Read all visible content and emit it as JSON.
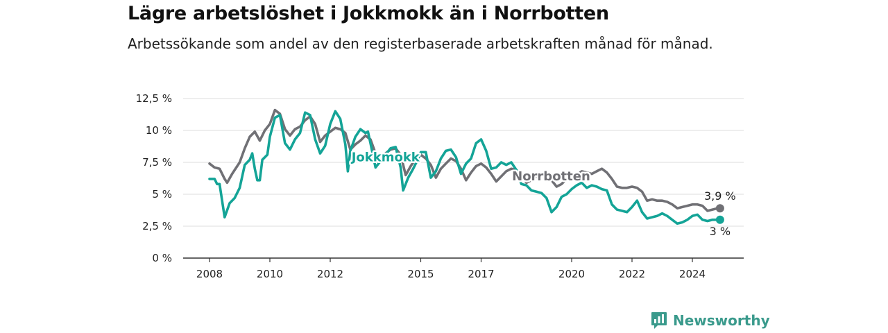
{
  "title": "Lägre arbetslöshet i Jokkmokk än i Norrbotten",
  "subtitle": "Arbetssökande som andel av den registerbaserade arbetskraften månad för månad.",
  "brand": {
    "name": "Newsworthy",
    "icon": "newsworthy-logo-icon",
    "color": "#3a9a8c"
  },
  "chart_data": {
    "type": "line",
    "x_range": [
      "2008-01",
      "2024-12"
    ],
    "ylim": [
      0,
      12.5
    ],
    "y_ticks": [
      {
        "value": 0,
        "label": "0 %"
      },
      {
        "value": 2.5,
        "label": "2,5 %"
      },
      {
        "value": 5,
        "label": "5 %"
      },
      {
        "value": 7.5,
        "label": "7,5 %"
      },
      {
        "value": 10,
        "label": "10 %"
      },
      {
        "value": 12.5,
        "label": "12,5 %"
      }
    ],
    "x_ticks": [
      "2008",
      "2010",
      "2012",
      "2015",
      "2017",
      "2020",
      "2022",
      "2024"
    ],
    "grid": "horizontal",
    "series": [
      {
        "name": "Norrbotten",
        "color": "#707075",
        "end_label": "3,9 %",
        "points": [
          [
            "2008-01",
            7.4
          ],
          [
            "2008-03",
            7.1
          ],
          [
            "2008-05",
            7.0
          ],
          [
            "2008-07",
            6.2
          ],
          [
            "2008-08",
            5.9
          ],
          [
            "2008-10",
            6.6
          ],
          [
            "2009-01",
            7.5
          ],
          [
            "2009-03",
            8.6
          ],
          [
            "2009-05",
            9.5
          ],
          [
            "2009-07",
            9.9
          ],
          [
            "2009-09",
            9.2
          ],
          [
            "2009-11",
            10.0
          ],
          [
            "2010-01",
            10.5
          ],
          [
            "2010-03",
            11.6
          ],
          [
            "2010-05",
            11.3
          ],
          [
            "2010-07",
            10.1
          ],
          [
            "2010-09",
            9.6
          ],
          [
            "2010-11",
            10.1
          ],
          [
            "2011-01",
            10.3
          ],
          [
            "2011-03",
            10.8
          ],
          [
            "2011-05",
            11.1
          ],
          [
            "2011-07",
            10.5
          ],
          [
            "2011-09",
            9.1
          ],
          [
            "2011-11",
            9.6
          ],
          [
            "2012-01",
            9.9
          ],
          [
            "2012-03",
            10.2
          ],
          [
            "2012-05",
            10.1
          ],
          [
            "2012-07",
            9.8
          ],
          [
            "2012-09",
            8.5
          ],
          [
            "2012-11",
            8.9
          ],
          [
            "2013-01",
            9.2
          ],
          [
            "2013-03",
            9.6
          ],
          [
            "2013-05",
            9.3
          ],
          [
            "2013-07",
            8.2
          ],
          [
            "2013-09",
            7.6
          ],
          [
            "2013-11",
            8.2
          ],
          [
            "2014-01",
            8.5
          ],
          [
            "2014-03",
            8.6
          ],
          [
            "2014-05",
            8.1
          ],
          [
            "2014-07",
            6.5
          ],
          [
            "2014-09",
            7.2
          ],
          [
            "2014-11",
            7.8
          ],
          [
            "2015-01",
            8.1
          ],
          [
            "2015-03",
            7.8
          ],
          [
            "2015-05",
            7.3
          ],
          [
            "2015-07",
            6.3
          ],
          [
            "2015-09",
            7.0
          ],
          [
            "2015-11",
            7.4
          ],
          [
            "2016-01",
            7.8
          ],
          [
            "2016-03",
            7.6
          ],
          [
            "2016-05",
            7.0
          ],
          [
            "2016-07",
            6.1
          ],
          [
            "2016-09",
            6.7
          ],
          [
            "2016-11",
            7.2
          ],
          [
            "2017-01",
            7.4
          ],
          [
            "2017-03",
            7.1
          ],
          [
            "2017-05",
            6.6
          ],
          [
            "2017-07",
            6.0
          ],
          [
            "2017-09",
            6.4
          ],
          [
            "2017-11",
            6.8
          ],
          [
            "2018-01",
            7.0
          ],
          [
            "2018-03",
            6.9
          ],
          [
            "2018-05",
            6.5
          ],
          [
            "2018-07",
            5.9
          ],
          [
            "2018-09",
            6.1
          ],
          [
            "2018-11",
            6.4
          ],
          [
            "2019-01",
            6.5
          ],
          [
            "2019-03",
            6.4
          ],
          [
            "2019-05",
            6.1
          ],
          [
            "2019-07",
            5.6
          ],
          [
            "2019-09",
            5.8
          ],
          [
            "2019-11",
            6.2
          ],
          [
            "2020-01",
            6.4
          ],
          [
            "2020-03",
            6.5
          ],
          [
            "2020-05",
            6.8
          ],
          [
            "2020-07",
            6.7
          ],
          [
            "2020-09",
            6.6
          ],
          [
            "2020-11",
            6.8
          ],
          [
            "2021-01",
            7.0
          ],
          [
            "2021-03",
            6.7
          ],
          [
            "2021-05",
            6.2
          ],
          [
            "2021-07",
            5.6
          ],
          [
            "2021-09",
            5.5
          ],
          [
            "2021-11",
            5.5
          ],
          [
            "2022-01",
            5.6
          ],
          [
            "2022-03",
            5.5
          ],
          [
            "2022-05",
            5.2
          ],
          [
            "2022-07",
            4.5
          ],
          [
            "2022-09",
            4.6
          ],
          [
            "2022-11",
            4.5
          ],
          [
            "2023-01",
            4.5
          ],
          [
            "2023-03",
            4.4
          ],
          [
            "2023-05",
            4.2
          ],
          [
            "2023-07",
            3.9
          ],
          [
            "2023-09",
            4.0
          ],
          [
            "2023-11",
            4.1
          ],
          [
            "2024-01",
            4.2
          ],
          [
            "2024-03",
            4.2
          ],
          [
            "2024-05",
            4.1
          ],
          [
            "2024-07",
            3.7
          ],
          [
            "2024-09",
            3.8
          ],
          [
            "2024-11",
            3.9
          ],
          [
            "2024-12",
            3.9
          ]
        ]
      },
      {
        "name": "Jokkmokk",
        "color": "#14a497",
        "end_label": "3 %",
        "points": [
          [
            "2008-01",
            6.2
          ],
          [
            "2008-03",
            6.2
          ],
          [
            "2008-04",
            5.8
          ],
          [
            "2008-05",
            5.8
          ],
          [
            "2008-07",
            3.2
          ],
          [
            "2008-09",
            4.3
          ],
          [
            "2008-11",
            4.7
          ],
          [
            "2009-01",
            5.5
          ],
          [
            "2009-03",
            7.3
          ],
          [
            "2009-05",
            7.7
          ],
          [
            "2009-06",
            8.2
          ],
          [
            "2009-07",
            7.0
          ],
          [
            "2009-08",
            6.1
          ],
          [
            "2009-09",
            6.1
          ],
          [
            "2009-10",
            7.7
          ],
          [
            "2009-12",
            8.1
          ],
          [
            "2010-01",
            9.5
          ],
          [
            "2010-03",
            11.0
          ],
          [
            "2010-05",
            11.2
          ],
          [
            "2010-07",
            9.0
          ],
          [
            "2010-09",
            8.5
          ],
          [
            "2010-11",
            9.3
          ],
          [
            "2011-01",
            9.8
          ],
          [
            "2011-03",
            11.4
          ],
          [
            "2011-05",
            11.2
          ],
          [
            "2011-07",
            9.3
          ],
          [
            "2011-09",
            8.2
          ],
          [
            "2011-11",
            8.8
          ],
          [
            "2012-01",
            10.5
          ],
          [
            "2012-03",
            11.5
          ],
          [
            "2012-05",
            10.9
          ],
          [
            "2012-07",
            8.9
          ],
          [
            "2012-08",
            6.8
          ],
          [
            "2012-09",
            8.4
          ],
          [
            "2012-11",
            9.5
          ],
          [
            "2013-01",
            10.1
          ],
          [
            "2013-03",
            9.8
          ],
          [
            "2013-04",
            9.9
          ],
          [
            "2013-05",
            9.0
          ],
          [
            "2013-07",
            7.1
          ],
          [
            "2013-09",
            7.6
          ],
          [
            "2013-11",
            8.1
          ],
          [
            "2014-01",
            8.6
          ],
          [
            "2014-03",
            8.7
          ],
          [
            "2014-05",
            7.1
          ],
          [
            "2014-06",
            5.3
          ],
          [
            "2014-08",
            6.3
          ],
          [
            "2014-10",
            7.0
          ],
          [
            "2014-12",
            7.8
          ],
          [
            "2015-01",
            8.3
          ],
          [
            "2015-03",
            8.3
          ],
          [
            "2015-05",
            6.3
          ],
          [
            "2015-07",
            6.8
          ],
          [
            "2015-09",
            7.8
          ],
          [
            "2015-11",
            8.4
          ],
          [
            "2016-01",
            8.5
          ],
          [
            "2016-03",
            7.9
          ],
          [
            "2016-05",
            6.6
          ],
          [
            "2016-07",
            7.4
          ],
          [
            "2016-09",
            7.8
          ],
          [
            "2016-11",
            9.0
          ],
          [
            "2017-01",
            9.3
          ],
          [
            "2017-03",
            8.4
          ],
          [
            "2017-05",
            7.0
          ],
          [
            "2017-07",
            7.1
          ],
          [
            "2017-09",
            7.5
          ],
          [
            "2017-11",
            7.3
          ],
          [
            "2018-01",
            7.5
          ],
          [
            "2018-03",
            6.9
          ],
          [
            "2018-05",
            5.8
          ],
          [
            "2018-07",
            5.7
          ],
          [
            "2018-09",
            5.3
          ],
          [
            "2018-11",
            5.2
          ],
          [
            "2019-01",
            5.1
          ],
          [
            "2019-03",
            4.7
          ],
          [
            "2019-05",
            3.6
          ],
          [
            "2019-07",
            4.0
          ],
          [
            "2019-09",
            4.8
          ],
          [
            "2019-11",
            5.0
          ],
          [
            "2020-01",
            5.4
          ],
          [
            "2020-03",
            5.7
          ],
          [
            "2020-05",
            5.9
          ],
          [
            "2020-07",
            5.5
          ],
          [
            "2020-09",
            5.7
          ],
          [
            "2020-11",
            5.6
          ],
          [
            "2021-01",
            5.4
          ],
          [
            "2021-03",
            5.3
          ],
          [
            "2021-05",
            4.2
          ],
          [
            "2021-07",
            3.8
          ],
          [
            "2021-09",
            3.7
          ],
          [
            "2021-11",
            3.6
          ],
          [
            "2022-01",
            4.0
          ],
          [
            "2022-03",
            4.5
          ],
          [
            "2022-05",
            3.6
          ],
          [
            "2022-07",
            3.1
          ],
          [
            "2022-09",
            3.2
          ],
          [
            "2022-11",
            3.3
          ],
          [
            "2023-01",
            3.5
          ],
          [
            "2023-03",
            3.3
          ],
          [
            "2023-05",
            3.0
          ],
          [
            "2023-07",
            2.7
          ],
          [
            "2023-09",
            2.8
          ],
          [
            "2023-11",
            3.0
          ],
          [
            "2024-01",
            3.3
          ],
          [
            "2024-03",
            3.4
          ],
          [
            "2024-05",
            3.0
          ],
          [
            "2024-07",
            2.9
          ],
          [
            "2024-09",
            3.0
          ],
          [
            "2024-11",
            3.0
          ],
          [
            "2024-12",
            3.0
          ]
        ]
      }
    ]
  }
}
